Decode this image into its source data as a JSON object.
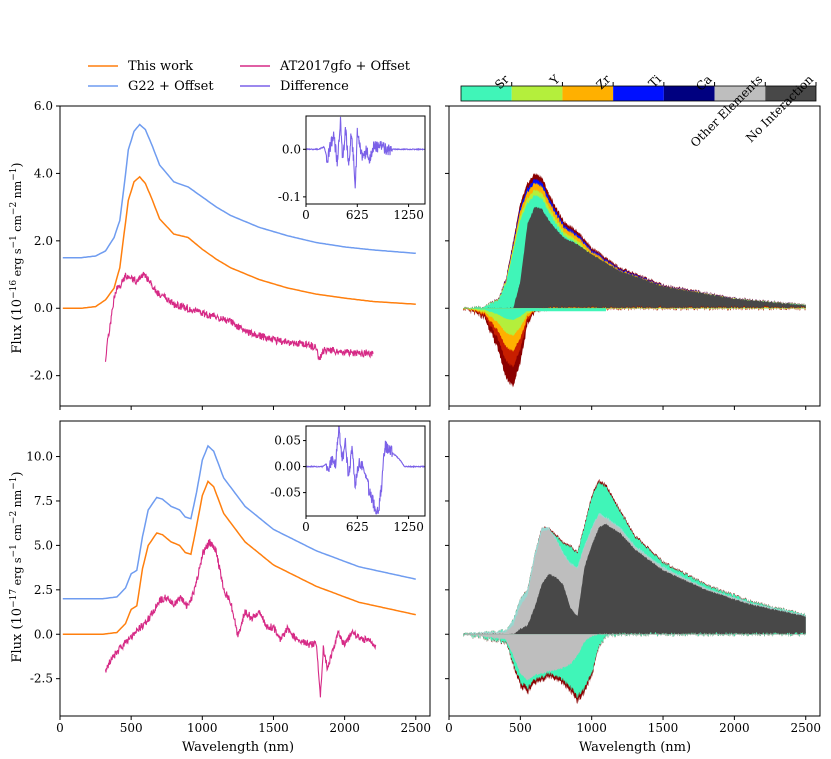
{
  "legend": {
    "entries": [
      {
        "label": "This work",
        "color": "#ff7f0e"
      },
      {
        "label": "G22 + Offset",
        "color": "#6f9cf0"
      },
      {
        "label": "AT2017gfo + Offset",
        "color": "#d62a86"
      },
      {
        "label": "Difference",
        "color": "#7b61e8"
      }
    ]
  },
  "elements_bar": {
    "labels": [
      "Sr",
      "Y",
      "Zr",
      "Ti",
      "Ca",
      "Other Elements",
      "No Interaction"
    ],
    "colors": [
      "#40f5b8",
      "#b4ef3c",
      "#ffb000",
      "#0010ff",
      "#000080",
      "#bebebe",
      "#484848"
    ]
  },
  "axes_text": {
    "xlabel": "Wavelength (nm)",
    "ylabel_top": "Flux (10",
    "ylabel_top_exp": "−16",
    "ylabel_bottom": "Flux (10",
    "ylabel_bottom_exp": "−17",
    "ylabel_units": " erg s",
    "ylabel_units_exp": "−1",
    "ylabel_cm": " cm",
    "ylabel_cm_exp": "−2",
    "ylabel_nm": " nm",
    "ylabel_nm_exp": "−1",
    "ylabel_close": ")"
  },
  "chart_data": [
    {
      "type": "line",
      "panel": "top-left",
      "xlabel": "",
      "xlim": [
        0,
        2600
      ],
      "ylim": [
        -2.9,
        6.0
      ],
      "yticks": [
        "6.0",
        "4.0",
        "2.0",
        "0.0",
        "-2.0"
      ],
      "ytick_values": [
        6.0,
        4.0,
        2.0,
        0.0,
        -2.0
      ],
      "series": [
        {
          "name": "G22 + Offset",
          "color": "#6f9cf0",
          "x": [
            20,
            150,
            250,
            320,
            380,
            420,
            450,
            480,
            520,
            560,
            600,
            650,
            700,
            800,
            900,
            1000,
            1100,
            1200,
            1400,
            1600,
            1800,
            2000,
            2200,
            2500
          ],
          "y": [
            1.5,
            1.5,
            1.55,
            1.7,
            2.1,
            2.6,
            3.6,
            4.7,
            5.25,
            5.45,
            5.3,
            4.8,
            4.25,
            3.75,
            3.6,
            3.3,
            3.0,
            2.75,
            2.4,
            2.15,
            1.95,
            1.82,
            1.73,
            1.63
          ]
        },
        {
          "name": "This work",
          "color": "#ff7f0e",
          "x": [
            20,
            150,
            250,
            320,
            380,
            420,
            450,
            480,
            520,
            560,
            600,
            650,
            700,
            800,
            900,
            1000,
            1100,
            1200,
            1400,
            1600,
            1800,
            2000,
            2200,
            2500
          ],
          "y": [
            0.0,
            0.0,
            0.05,
            0.25,
            0.6,
            1.2,
            2.2,
            3.2,
            3.75,
            3.9,
            3.7,
            3.2,
            2.65,
            2.2,
            2.1,
            1.75,
            1.45,
            1.2,
            0.85,
            0.6,
            0.42,
            0.3,
            0.2,
            0.12
          ]
        },
        {
          "name": "AT2017gfo + Offset",
          "color": "#d62a86",
          "x": [
            320,
            340,
            360,
            380,
            400,
            430,
            460,
            500,
            540,
            580,
            620,
            660,
            700,
            750,
            800,
            850,
            900,
            950,
            1000,
            1100,
            1200,
            1300,
            1350,
            1400,
            1500,
            1600,
            1700,
            1800,
            1820,
            1850,
            1900,
            2000,
            2100,
            2200
          ],
          "y": [
            -1.5,
            -0.8,
            -0.3,
            0.3,
            0.6,
            0.7,
            0.95,
            0.9,
            0.8,
            1.0,
            0.85,
            0.55,
            0.4,
            0.3,
            0.1,
            0.05,
            0.0,
            -0.1,
            -0.15,
            -0.25,
            -0.4,
            -0.7,
            -0.75,
            -0.8,
            -0.95,
            -1.0,
            -1.05,
            -1.15,
            -1.6,
            -1.25,
            -1.25,
            -1.3,
            -1.32,
            -1.35
          ]
        }
      ],
      "inset": {
        "xlim": [
          0,
          1450
        ],
        "ylim": [
          -0.115,
          0.07
        ],
        "xticks": [
          "0",
          "625",
          "1250"
        ],
        "xtick_values": [
          0,
          625,
          1250
        ],
        "yticks": [
          "0.0",
          "-0.1"
        ],
        "ytick_values": [
          0.0,
          -0.1
        ],
        "series": [
          {
            "name": "Difference",
            "color": "#7b61e8",
            "x": [
              0,
              150,
              220,
              260,
              300,
              340,
              380,
              420,
              450,
              480,
              520,
              550,
              580,
              600,
              625,
              650,
              700,
              740,
              780,
              820,
              900,
              1000,
              1100,
              1200,
              1300,
              1450
            ],
            "y": [
              0.0,
              0.0,
              0.005,
              -0.02,
              0.01,
              0.03,
              -0.03,
              0.06,
              -0.03,
              0.05,
              -0.04,
              0.03,
              -0.02,
              -0.09,
              0.04,
              0.01,
              -0.02,
              0.0,
              -0.02,
              0.005,
              0.005,
              0.0,
              0.0,
              0.0,
              0.0,
              0.0
            ]
          }
        ]
      }
    },
    {
      "type": "area",
      "panel": "top-right",
      "xlim": [
        0,
        2600
      ],
      "ylim": [
        -2.9,
        6.0
      ],
      "x": [
        100,
        250,
        350,
        400,
        450,
        500,
        550,
        600,
        650,
        700,
        800,
        900,
        1000,
        1200,
        1500,
        2000,
        2500
      ],
      "emission_total": [
        0.0,
        0.05,
        0.3,
        0.9,
        2.0,
        3.1,
        3.7,
        4.0,
        3.9,
        3.4,
        2.6,
        2.3,
        1.8,
        1.2,
        0.7,
        0.3,
        0.1
      ],
      "emission_no_interaction": [
        0.0,
        0.0,
        0.0,
        0.0,
        0.0,
        0.8,
        2.5,
        3.0,
        2.95,
        2.6,
        2.1,
        1.9,
        1.6,
        1.1,
        0.65,
        0.28,
        0.09
      ],
      "absorption_total": [
        0.0,
        -0.3,
        -1.3,
        -2.1,
        -2.3,
        -1.6,
        -0.5,
        -0.1,
        -0.05,
        0.0,
        0.0,
        0.0,
        0.0,
        0.0,
        0.0,
        0.0,
        0.0
      ]
    },
    {
      "type": "line",
      "panel": "bottom-left",
      "xlabel": "Wavelength (nm)",
      "xlim": [
        0,
        2600
      ],
      "ylim": [
        -4.6,
        12.0
      ],
      "xticks": [
        "0",
        "500",
        "1000",
        "1500",
        "2000",
        "2500"
      ],
      "xtick_values": [
        0,
        500,
        1000,
        1500,
        2000,
        2500
      ],
      "yticks": [
        "10.0",
        "7.5",
        "5.0",
        "2.5",
        "0.0",
        "-2.5"
      ],
      "ytick_values": [
        10.0,
        7.5,
        5.0,
        2.5,
        0.0,
        -2.5
      ],
      "series": [
        {
          "name": "G22 + Offset",
          "color": "#6f9cf0",
          "x": [
            20,
            300,
            400,
            460,
            500,
            540,
            580,
            620,
            680,
            720,
            780,
            840,
            880,
            920,
            960,
            1000,
            1040,
            1080,
            1150,
            1300,
            1500,
            1800,
            2100,
            2500
          ],
          "y": [
            2.0,
            2.0,
            2.1,
            2.6,
            3.4,
            3.6,
            5.5,
            7.0,
            7.7,
            7.6,
            7.2,
            7.0,
            6.6,
            6.5,
            8.0,
            9.8,
            10.6,
            10.3,
            8.8,
            7.2,
            5.9,
            4.7,
            3.8,
            3.1
          ]
        },
        {
          "name": "This work",
          "color": "#ff7f0e",
          "x": [
            20,
            300,
            400,
            460,
            500,
            540,
            580,
            620,
            680,
            720,
            780,
            840,
            880,
            920,
            960,
            1000,
            1040,
            1080,
            1150,
            1300,
            1500,
            1800,
            2100,
            2500
          ],
          "y": [
            0.0,
            0.0,
            0.1,
            0.6,
            1.4,
            1.6,
            3.7,
            5.0,
            5.7,
            5.6,
            5.2,
            5.0,
            4.6,
            4.5,
            6.1,
            7.8,
            8.6,
            8.3,
            6.8,
            5.2,
            3.9,
            2.7,
            1.8,
            1.1
          ]
        },
        {
          "name": "AT2017gfo + Offset",
          "color": "#d62a86",
          "x": [
            320,
            360,
            400,
            450,
            500,
            550,
            600,
            650,
            700,
            750,
            800,
            850,
            900,
            950,
            1000,
            1050,
            1100,
            1150,
            1200,
            1250,
            1300,
            1350,
            1400,
            1450,
            1500,
            1550,
            1600,
            1650,
            1700,
            1750,
            1800,
            1830,
            1850,
            1880,
            1950,
            2000,
            2050,
            2100,
            2150,
            2220
          ],
          "y": [
            -2.0,
            -1.4,
            -1.0,
            -0.6,
            -0.2,
            0.3,
            0.6,
            1.2,
            1.9,
            2.1,
            1.7,
            2.1,
            1.5,
            2.6,
            4.5,
            5.2,
            4.6,
            2.5,
            1.8,
            -0.1,
            1.3,
            0.9,
            1.3,
            0.4,
            0.4,
            -0.3,
            0.3,
            -0.2,
            -0.4,
            -0.6,
            -0.5,
            -3.5,
            -0.8,
            -2.0,
            0.1,
            -0.6,
            0.1,
            -0.2,
            -0.3,
            -0.6
          ]
        }
      ],
      "inset": {
        "xlim": [
          0,
          1450
        ],
        "ylim": [
          -0.095,
          0.078
        ],
        "xticks": [
          "0",
          "625",
          "1250"
        ],
        "xtick_values": [
          0,
          625,
          1250
        ],
        "yticks": [
          "0.05",
          "0.00",
          "-0.05"
        ],
        "ytick_values": [
          0.05,
          0.0,
          -0.05
        ],
        "series": [
          {
            "name": "Difference",
            "color": "#7b61e8",
            "x": [
              0,
              200,
              240,
              280,
              320,
              360,
              400,
              440,
              480,
              520,
              560,
              600,
              650,
              700,
              760,
              800,
              840,
              880,
              920,
              960,
              1000,
              1060,
              1100,
              1160,
              1200,
              1300,
              1400,
              1450
            ],
            "y": [
              0.0,
              0.0,
              0.005,
              0.0,
              0.012,
              0.0,
              0.075,
              0.01,
              0.045,
              -0.02,
              0.03,
              -0.035,
              0.01,
              0.0,
              -0.04,
              -0.06,
              -0.08,
              -0.09,
              -0.04,
              0.04,
              0.035,
              0.025,
              0.02,
              0.01,
              0.0,
              0.0,
              0.0,
              0.0
            ]
          }
        ]
      }
    },
    {
      "type": "area",
      "panel": "bottom-right",
      "xlabel": "Wavelength (nm)",
      "xlim": [
        0,
        2600
      ],
      "ylim": [
        -4.6,
        12.0
      ],
      "xticks": [
        "0",
        "500",
        "1000",
        "1500",
        "2000",
        "2500"
      ],
      "xtick_values": [
        0,
        500,
        1000,
        1500,
        2000,
        2500
      ],
      "x": [
        100,
        400,
        450,
        500,
        550,
        600,
        650,
        700,
        750,
        800,
        850,
        900,
        950,
        1000,
        1050,
        1100,
        1200,
        1300,
        1500,
        1800,
        2100,
        2500
      ],
      "emission_total": [
        0.0,
        0.2,
        0.8,
        2.0,
        2.5,
        4.5,
        6.0,
        6.0,
        5.6,
        5.2,
        5.0,
        4.6,
        6.2,
        7.8,
        8.7,
        8.4,
        7.0,
        5.6,
        4.1,
        2.8,
        1.9,
        1.1
      ],
      "emission_sr_top": [
        0.0,
        0.2,
        0.8,
        2.0,
        2.5,
        4.5,
        6.0,
        6.0,
        5.4,
        4.6,
        4.0,
        3.8,
        5.0,
        6.0,
        6.8,
        6.6,
        6.0,
        5.0,
        3.8,
        2.6,
        1.8,
        1.05
      ],
      "emission_other_top": [
        0.0,
        0.1,
        0.5,
        1.6,
        2.2,
        4.2,
        5.8,
        5.9,
        5.3,
        4.5,
        3.9,
        3.7,
        4.9,
        5.9,
        6.7,
        6.5,
        5.9,
        4.9,
        3.7,
        2.55,
        1.75,
        1.0
      ],
      "emission_no_interaction": [
        0.0,
        0.0,
        0.0,
        0.3,
        0.5,
        1.5,
        2.8,
        3.4,
        3.2,
        2.8,
        1.5,
        1.0,
        3.8,
        5.0,
        6.0,
        6.2,
        5.7,
        4.8,
        3.6,
        2.5,
        1.7,
        1.0
      ],
      "absorption_total": [
        0.0,
        -0.5,
        -1.8,
        -2.9,
        -3.3,
        -2.8,
        -2.6,
        -2.4,
        -2.6,
        -2.8,
        -3.2,
        -3.8,
        -3.3,
        -2.4,
        -0.8,
        -0.1,
        0.0,
        0.0,
        0.0,
        0.0,
        0.0,
        0.0
      ],
      "absorption_other": [
        0.0,
        -0.3,
        -1.2,
        -2.2,
        -2.6,
        -2.3,
        -2.2,
        -2.1,
        -2.0,
        -1.9,
        -1.7,
        -1.2,
        -0.4,
        -0.1,
        0.0,
        0.0,
        0.0,
        0.0,
        0.0,
        0.0,
        0.0,
        0.0
      ]
    }
  ]
}
